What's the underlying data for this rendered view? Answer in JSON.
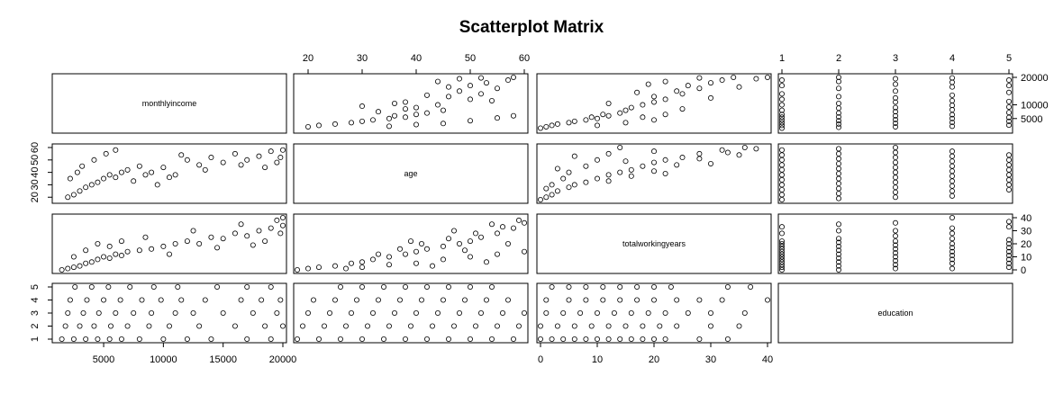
{
  "chart_data": {
    "type": "scatter",
    "title": "Scatterplot Matrix",
    "variables": [
      {
        "name": "monthlyincome",
        "range": [
          1000,
          20000
        ],
        "ticks": [
          5000,
          10000,
          15000,
          20000
        ],
        "tick_labels": [
          "5000",
          "10000",
          "15000",
          "20000"
        ]
      },
      {
        "name": "age",
        "range": [
          18,
          60
        ],
        "ticks": [
          20,
          30,
          40,
          50,
          60
        ],
        "tick_labels": [
          "20",
          "30",
          "40",
          "50",
          "60"
        ]
      },
      {
        "name": "totalworkingyears",
        "range": [
          0,
          40
        ],
        "ticks": [
          0,
          10,
          20,
          30,
          40
        ],
        "tick_labels": [
          "0",
          "10",
          "20",
          "30",
          "40"
        ]
      },
      {
        "name": "education",
        "range": [
          1,
          5
        ],
        "ticks": [
          1,
          2,
          3,
          4,
          5
        ],
        "tick_labels": [
          "1",
          "2",
          "3",
          "4",
          "5"
        ]
      }
    ],
    "right_axis_tick_labels": {
      "monthlyincome": [
        "5000",
        "10000",
        "20000"
      ]
    },
    "pairs": {
      "monthlyincome-age": [
        [
          2000,
          20
        ],
        [
          2500,
          22
        ],
        [
          3000,
          25
        ],
        [
          3500,
          28
        ],
        [
          4000,
          30
        ],
        [
          4500,
          32
        ],
        [
          5000,
          35
        ],
        [
          5500,
          38
        ],
        [
          6000,
          36
        ],
        [
          6500,
          40
        ],
        [
          7000,
          42
        ],
        [
          8000,
          45
        ],
        [
          9000,
          40
        ],
        [
          10000,
          44
        ],
        [
          11000,
          38
        ],
        [
          12000,
          50
        ],
        [
          13000,
          46
        ],
        [
          14000,
          52
        ],
        [
          15000,
          48
        ],
        [
          16000,
          55
        ],
        [
          17000,
          50
        ],
        [
          18000,
          53
        ],
        [
          19000,
          57
        ],
        [
          20000,
          58
        ],
        [
          2200,
          35
        ],
        [
          2800,
          40
        ],
        [
          3200,
          45
        ],
        [
          4200,
          50
        ],
        [
          5200,
          55
        ],
        [
          6000,
          58
        ],
        [
          7500,
          33
        ],
        [
          8500,
          38
        ],
        [
          9500,
          30
        ],
        [
          10500,
          36
        ],
        [
          11500,
          54
        ],
        [
          13500,
          42
        ],
        [
          16500,
          46
        ],
        [
          18500,
          44
        ],
        [
          19500,
          48
        ],
        [
          19800,
          52
        ]
      ],
      "monthlyincome-totalworkingyears": [
        [
          1500,
          0
        ],
        [
          2000,
          1
        ],
        [
          2500,
          2
        ],
        [
          3000,
          3
        ],
        [
          3500,
          5
        ],
        [
          4000,
          6
        ],
        [
          4500,
          8
        ],
        [
          5000,
          10
        ],
        [
          5500,
          9
        ],
        [
          6000,
          12
        ],
        [
          6500,
          11
        ],
        [
          7000,
          14
        ],
        [
          8000,
          15
        ],
        [
          9000,
          16
        ],
        [
          10000,
          18
        ],
        [
          11000,
          20
        ],
        [
          12000,
          22
        ],
        [
          13000,
          20
        ],
        [
          14000,
          25
        ],
        [
          15000,
          24
        ],
        [
          16000,
          28
        ],
        [
          17000,
          26
        ],
        [
          18000,
          30
        ],
        [
          19000,
          32
        ],
        [
          20000,
          34
        ],
        [
          2500,
          10
        ],
        [
          3500,
          15
        ],
        [
          4500,
          20
        ],
        [
          5500,
          18
        ],
        [
          6500,
          22
        ],
        [
          8500,
          25
        ],
        [
          10500,
          12
        ],
        [
          12500,
          30
        ],
        [
          14500,
          17
        ],
        [
          16500,
          35
        ],
        [
          18500,
          22
        ],
        [
          19500,
          38
        ],
        [
          19800,
          28
        ],
        [
          20000,
          40
        ],
        [
          17500,
          19
        ]
      ],
      "monthlyincome-education": [
        [
          1500,
          1
        ],
        [
          2500,
          1
        ],
        [
          3500,
          1
        ],
        [
          4500,
          1
        ],
        [
          5500,
          1
        ],
        [
          6500,
          1
        ],
        [
          8000,
          1
        ],
        [
          10000,
          1
        ],
        [
          12000,
          1
        ],
        [
          14000,
          1
        ],
        [
          17000,
          1
        ],
        [
          19000,
          1
        ],
        [
          1800,
          2
        ],
        [
          3000,
          2
        ],
        [
          4200,
          2
        ],
        [
          5600,
          2
        ],
        [
          7000,
          2
        ],
        [
          8800,
          2
        ],
        [
          10500,
          2
        ],
        [
          13000,
          2
        ],
        [
          16000,
          2
        ],
        [
          18500,
          2
        ],
        [
          20000,
          2
        ],
        [
          2000,
          3
        ],
        [
          3300,
          3
        ],
        [
          4600,
          3
        ],
        [
          6000,
          3
        ],
        [
          7500,
          3
        ],
        [
          9000,
          3
        ],
        [
          11000,
          3
        ],
        [
          12500,
          3
        ],
        [
          15000,
          3
        ],
        [
          17500,
          3
        ],
        [
          19500,
          3
        ],
        [
          2200,
          4
        ],
        [
          3600,
          4
        ],
        [
          5000,
          4
        ],
        [
          6400,
          4
        ],
        [
          8200,
          4
        ],
        [
          9800,
          4
        ],
        [
          11500,
          4
        ],
        [
          13500,
          4
        ],
        [
          16500,
          4
        ],
        [
          18200,
          4
        ],
        [
          19800,
          4
        ],
        [
          2600,
          5
        ],
        [
          4000,
          5
        ],
        [
          5400,
          5
        ],
        [
          7200,
          5
        ],
        [
          9200,
          5
        ],
        [
          11200,
          5
        ],
        [
          14500,
          5
        ],
        [
          17000,
          5
        ],
        [
          19000,
          5
        ]
      ],
      "age-totalworkingyears": [
        [
          18,
          0
        ],
        [
          20,
          1
        ],
        [
          22,
          2
        ],
        [
          25,
          3
        ],
        [
          28,
          5
        ],
        [
          30,
          6
        ],
        [
          32,
          8
        ],
        [
          35,
          10
        ],
        [
          38,
          12
        ],
        [
          40,
          14
        ],
        [
          42,
          16
        ],
        [
          45,
          18
        ],
        [
          48,
          20
        ],
        [
          50,
          22
        ],
        [
          52,
          25
        ],
        [
          55,
          28
        ],
        [
          58,
          32
        ],
        [
          60,
          36
        ],
        [
          30,
          2
        ],
        [
          35,
          4
        ],
        [
          40,
          5
        ],
        [
          45,
          8
        ],
        [
          50,
          10
        ],
        [
          55,
          12
        ],
        [
          60,
          14
        ],
        [
          33,
          12
        ],
        [
          37,
          16
        ],
        [
          41,
          20
        ],
        [
          46,
          24
        ],
        [
          51,
          28
        ],
        [
          56,
          33
        ],
        [
          59,
          38
        ],
        [
          27,
          1
        ],
        [
          43,
          3
        ],
        [
          53,
          6
        ],
        [
          57,
          20
        ],
        [
          47,
          30
        ],
        [
          54,
          35
        ],
        [
          39,
          22
        ],
        [
          49,
          15
        ]
      ],
      "age-education": [
        [
          18,
          1
        ],
        [
          22,
          1
        ],
        [
          26,
          1
        ],
        [
          30,
          1
        ],
        [
          34,
          1
        ],
        [
          38,
          1
        ],
        [
          42,
          1
        ],
        [
          46,
          1
        ],
        [
          50,
          1
        ],
        [
          54,
          1
        ],
        [
          58,
          1
        ],
        [
          19,
          2
        ],
        [
          23,
          2
        ],
        [
          27,
          2
        ],
        [
          31,
          2
        ],
        [
          35,
          2
        ],
        [
          39,
          2
        ],
        [
          43,
          2
        ],
        [
          47,
          2
        ],
        [
          51,
          2
        ],
        [
          55,
          2
        ],
        [
          59,
          2
        ],
        [
          20,
          3
        ],
        [
          24,
          3
        ],
        [
          28,
          3
        ],
        [
          32,
          3
        ],
        [
          36,
          3
        ],
        [
          40,
          3
        ],
        [
          44,
          3
        ],
        [
          48,
          3
        ],
        [
          52,
          3
        ],
        [
          56,
          3
        ],
        [
          60,
          3
        ],
        [
          21,
          4
        ],
        [
          25,
          4
        ],
        [
          29,
          4
        ],
        [
          33,
          4
        ],
        [
          37,
          4
        ],
        [
          41,
          4
        ],
        [
          45,
          4
        ],
        [
          49,
          4
        ],
        [
          53,
          4
        ],
        [
          57,
          4
        ],
        [
          26,
          5
        ],
        [
          30,
          5
        ],
        [
          34,
          5
        ],
        [
          38,
          5
        ],
        [
          42,
          5
        ],
        [
          46,
          5
        ],
        [
          50,
          5
        ],
        [
          54,
          5
        ]
      ],
      "totalworkingyears-education": [
        [
          0,
          1
        ],
        [
          2,
          1
        ],
        [
          4,
          1
        ],
        [
          6,
          1
        ],
        [
          8,
          1
        ],
        [
          10,
          1
        ],
        [
          12,
          1
        ],
        [
          14,
          1
        ],
        [
          16,
          1
        ],
        [
          18,
          1
        ],
        [
          20,
          1
        ],
        [
          22,
          1
        ],
        [
          28,
          1
        ],
        [
          33,
          1
        ],
        [
          0,
          2
        ],
        [
          3,
          2
        ],
        [
          6,
          2
        ],
        [
          9,
          2
        ],
        [
          12,
          2
        ],
        [
          15,
          2
        ],
        [
          18,
          2
        ],
        [
          21,
          2
        ],
        [
          24,
          2
        ],
        [
          30,
          2
        ],
        [
          35,
          2
        ],
        [
          1,
          3
        ],
        [
          4,
          3
        ],
        [
          7,
          3
        ],
        [
          10,
          3
        ],
        [
          13,
          3
        ],
        [
          16,
          3
        ],
        [
          19,
          3
        ],
        [
          22,
          3
        ],
        [
          26,
          3
        ],
        [
          30,
          3
        ],
        [
          36,
          3
        ],
        [
          1,
          4
        ],
        [
          5,
          4
        ],
        [
          8,
          4
        ],
        [
          11,
          4
        ],
        [
          14,
          4
        ],
        [
          17,
          4
        ],
        [
          20,
          4
        ],
        [
          24,
          4
        ],
        [
          28,
          4
        ],
        [
          32,
          4
        ],
        [
          40,
          4
        ],
        [
          2,
          5
        ],
        [
          5,
          5
        ],
        [
          8,
          5
        ],
        [
          11,
          5
        ],
        [
          14,
          5
        ],
        [
          17,
          5
        ],
        [
          20,
          5
        ],
        [
          23,
          5
        ],
        [
          33,
          5
        ],
        [
          37,
          5
        ]
      ]
    }
  }
}
